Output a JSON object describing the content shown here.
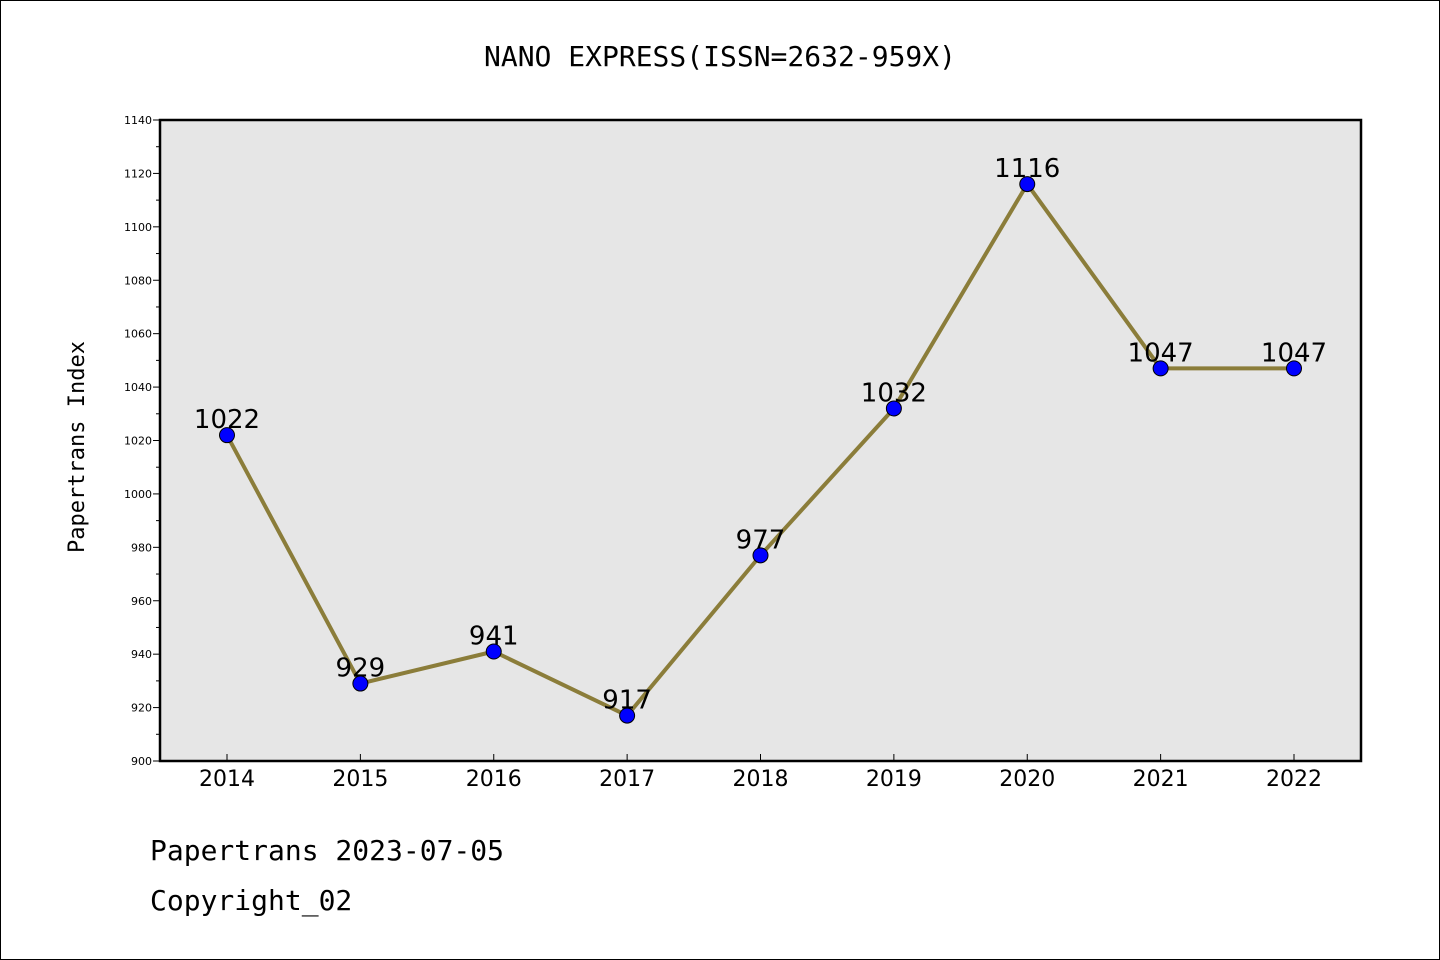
{
  "chart_data": {
    "type": "line",
    "title": "NANO EXPRESS(ISSN=2632-959X)",
    "xlabel": "",
    "ylabel": "Papertrans Index",
    "categories": [
      "2014",
      "2015",
      "2016",
      "2017",
      "2018",
      "2019",
      "2020",
      "2021",
      "2022"
    ],
    "series": [
      {
        "values": [
          1022,
          929,
          941,
          917,
          977,
          1032,
          1116,
          1047,
          1047
        ]
      }
    ],
    "data_labels": [
      "1022",
      "929",
      "941",
      "917",
      "977",
      "1032",
      "1116",
      "1047",
      "1047"
    ],
    "ylim": [
      900,
      1140
    ],
    "yticks": [
      900,
      920,
      940,
      960,
      980,
      1000,
      1020,
      1040,
      1060,
      1080,
      1100,
      1120,
      1140
    ],
    "grid": false,
    "legend": "none",
    "colors": {
      "line": "#8b7d3a",
      "marker": "#0000ff",
      "plot_background": "#e6e6e6"
    }
  },
  "footer": {
    "line1": "Papertrans 2023-07-05",
    "line2": "Copyright_02"
  }
}
